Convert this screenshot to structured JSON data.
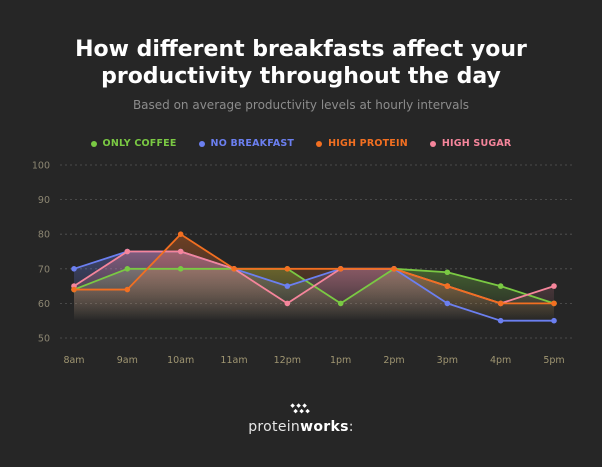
{
  "title_line1": "How different breakfasts affect your",
  "title_line2": "productivity throughout the day",
  "subtitle": "Based on average productivity levels at hourly intervals",
  "brand": {
    "name_light": "protein",
    "name_bold": "works",
    "suffix": ":"
  },
  "chart_data": {
    "type": "line",
    "categories": [
      "8am",
      "9am",
      "10am",
      "11am",
      "12pm",
      "1pm",
      "2pm",
      "3pm",
      "4pm",
      "5pm"
    ],
    "y_ticks": [
      50,
      60,
      70,
      80,
      90,
      100
    ],
    "ylim": [
      50,
      100
    ],
    "grid": true,
    "legend_placement": "top-center",
    "series": [
      {
        "name": "ONLY COFFEE",
        "color": "#7ac943",
        "values": [
          64,
          70,
          70,
          70,
          70,
          60,
          70,
          69,
          65,
          60
        ]
      },
      {
        "name": "NO BREAKFAST",
        "color": "#6b7ff0",
        "values": [
          70,
          75,
          75,
          70,
          65,
          70,
          70,
          60,
          55,
          55
        ]
      },
      {
        "name": "HIGH PROTEIN",
        "color": "#f26f21",
        "values": [
          64,
          64,
          80,
          70,
          70,
          70,
          70,
          65,
          60,
          60
        ]
      },
      {
        "name": "HIGH SUGAR",
        "color": "#f5859b",
        "values": [
          65,
          75,
          75,
          70,
          60,
          70,
          70,
          65,
          60,
          65
        ]
      }
    ]
  }
}
